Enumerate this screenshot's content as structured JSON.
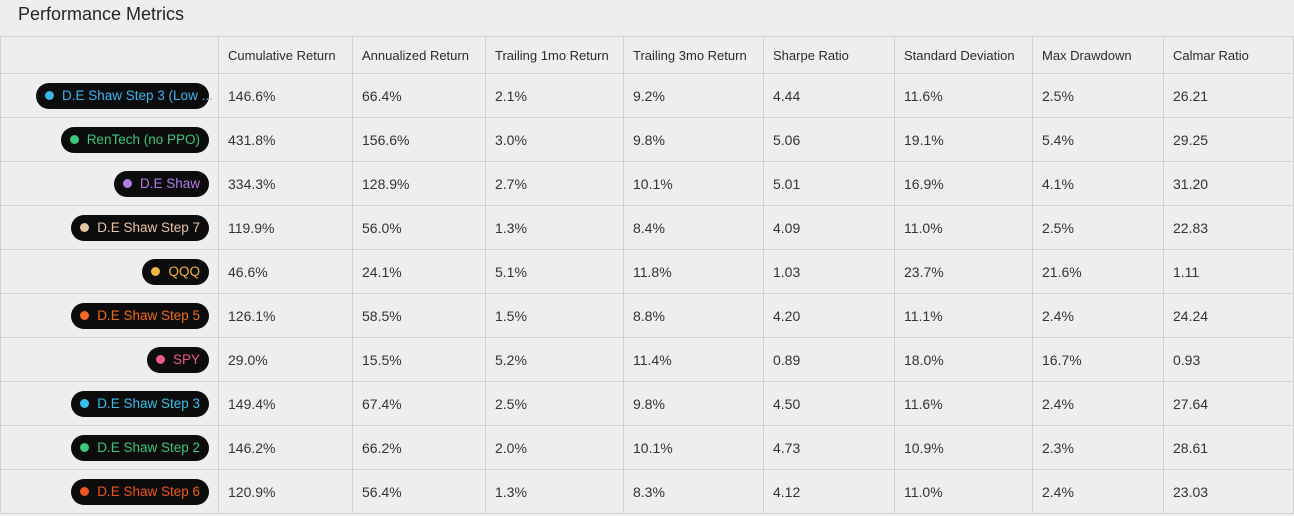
{
  "panel": {
    "title": "Performance Metrics"
  },
  "table": {
    "columns": [
      "",
      "Cumulative Return",
      "Annualized Return",
      "Trailing 1mo Return",
      "Trailing 3mo Return",
      "Sharpe Ratio",
      "Standard Deviation",
      "Max Drawdown",
      "Calmar Ratio"
    ],
    "rows": [
      {
        "name": "D.E Shaw Step 3 (Low ...",
        "color": "#38b6f0",
        "values": [
          "146.6%",
          "66.4%",
          "2.1%",
          "9.2%",
          "4.44",
          "11.6%",
          "2.5%",
          "26.21"
        ]
      },
      {
        "name": "RenTech (no PPO)",
        "color": "#3cc77a",
        "values": [
          "431.8%",
          "156.6%",
          "3.0%",
          "9.8%",
          "5.06",
          "19.1%",
          "5.4%",
          "29.25"
        ]
      },
      {
        "name": "D.E Shaw",
        "color": "#b07ce8",
        "values": [
          "334.3%",
          "128.9%",
          "2.7%",
          "10.1%",
          "5.01",
          "16.9%",
          "4.1%",
          "31.20"
        ]
      },
      {
        "name": "D.E Shaw Step 7",
        "color": "#e8c4a6",
        "values": [
          "119.9%",
          "56.0%",
          "1.3%",
          "8.4%",
          "4.09",
          "11.0%",
          "2.5%",
          "22.83"
        ]
      },
      {
        "name": "QQQ",
        "color": "#f4b740",
        "values": [
          "46.6%",
          "24.1%",
          "5.1%",
          "11.8%",
          "1.03",
          "23.7%",
          "21.6%",
          "1.11"
        ]
      },
      {
        "name": "D.E Shaw Step 5",
        "color": "#f26a1f",
        "values": [
          "126.1%",
          "58.5%",
          "1.5%",
          "8.8%",
          "4.20",
          "11.1%",
          "2.4%",
          "24.24"
        ]
      },
      {
        "name": "SPY",
        "color": "#ec5a8a",
        "values": [
          "29.0%",
          "15.5%",
          "5.2%",
          "11.4%",
          "0.89",
          "18.0%",
          "16.7%",
          "0.93"
        ]
      },
      {
        "name": "D.E Shaw Step 3",
        "color": "#38c0ea",
        "values": [
          "149.4%",
          "67.4%",
          "2.5%",
          "9.8%",
          "4.50",
          "11.6%",
          "2.4%",
          "27.64"
        ]
      },
      {
        "name": "D.E Shaw Step 2",
        "color": "#3cc77a",
        "values": [
          "146.2%",
          "66.2%",
          "2.0%",
          "10.1%",
          "4.73",
          "10.9%",
          "2.3%",
          "28.61"
        ]
      },
      {
        "name": "D.E Shaw Step 6",
        "color": "#f2561f",
        "values": [
          "120.9%",
          "56.4%",
          "1.3%",
          "8.3%",
          "4.12",
          "11.0%",
          "2.4%",
          "23.03"
        ]
      }
    ]
  }
}
